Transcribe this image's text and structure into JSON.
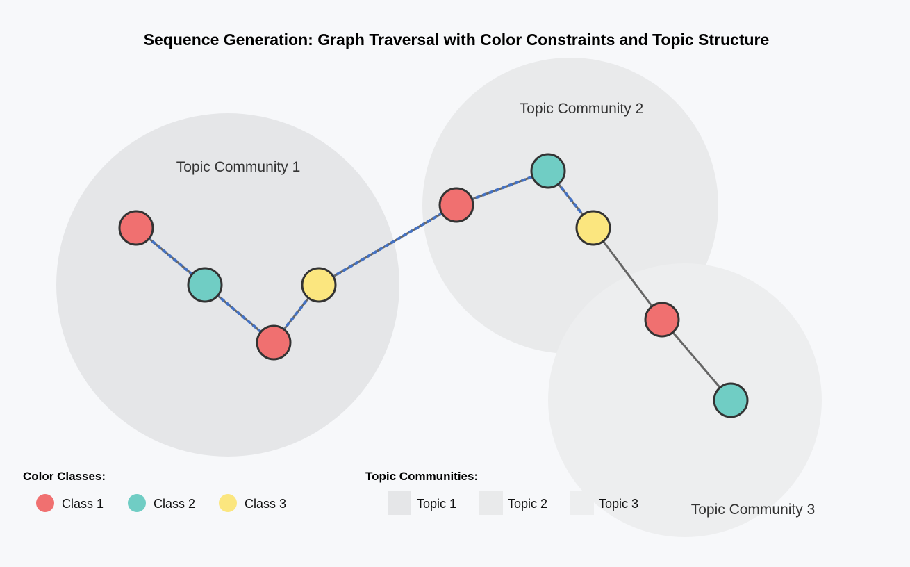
{
  "title": "Sequence Generation: Graph Traversal with Color Constraints and Topic Structure",
  "colors": {
    "class1": "#f07070",
    "class2": "#70cdc4",
    "class3": "#fbe67f",
    "path": "#4472c4",
    "edge": "#666666",
    "community1": "#e5e6e8",
    "community2": "#e9eaeb",
    "community3": "#edeeef"
  },
  "communities": [
    {
      "id": "c1",
      "label": "Topic Community 1"
    },
    {
      "id": "c2",
      "label": "Topic Community 2"
    },
    {
      "id": "c3",
      "label": "Topic Community 3"
    }
  ],
  "nodes": [
    {
      "id": "n1",
      "class": "class1",
      "community": "c1"
    },
    {
      "id": "n2",
      "class": "class2",
      "community": "c1"
    },
    {
      "id": "n3",
      "class": "class1",
      "community": "c1"
    },
    {
      "id": "n4",
      "class": "class3",
      "community": "c1"
    },
    {
      "id": "n5",
      "class": "class1",
      "community": "c2"
    },
    {
      "id": "n6",
      "class": "class2",
      "community": "c2"
    },
    {
      "id": "n7",
      "class": "class3",
      "community": "c2"
    },
    {
      "id": "n8",
      "class": "class1",
      "community": "c3"
    },
    {
      "id": "n9",
      "class": "class2",
      "community": "c3"
    }
  ],
  "edges": [
    {
      "from": "n1",
      "to": "n2",
      "highlighted": true
    },
    {
      "from": "n2",
      "to": "n3",
      "highlighted": true
    },
    {
      "from": "n3",
      "to": "n4",
      "highlighted": true
    },
    {
      "from": "n4",
      "to": "n5",
      "highlighted": true
    },
    {
      "from": "n5",
      "to": "n6",
      "highlighted": true
    },
    {
      "from": "n6",
      "to": "n7",
      "highlighted": true
    },
    {
      "from": "n7",
      "to": "n8",
      "highlighted": false
    },
    {
      "from": "n8",
      "to": "n9",
      "highlighted": false
    }
  ],
  "legend": {
    "color_classes_title": "Color Classes:",
    "color_classes": [
      {
        "label": "Class 1",
        "color": "#f07070"
      },
      {
        "label": "Class 2",
        "color": "#70cdc4"
      },
      {
        "label": "Class 3",
        "color": "#fbe67f"
      }
    ],
    "topic_communities_title": "Topic Communities:",
    "topic_communities": [
      {
        "label": "Topic 1",
        "color": "#e5e6e8"
      },
      {
        "label": "Topic 2",
        "color": "#e9eaeb"
      },
      {
        "label": "Topic 3",
        "color": "#edeeef"
      }
    ]
  }
}
